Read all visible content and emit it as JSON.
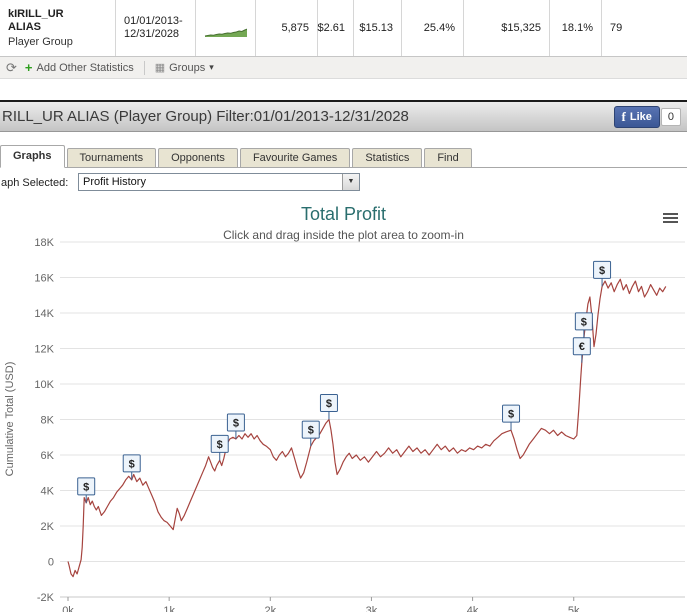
{
  "player_table": {
    "row": {
      "name": "kIRILL_UR ALIAS",
      "subtitle": "Player Group",
      "date_line1": "01/01/2013-",
      "date_line2": "12/31/2028",
      "stats": [
        "5,875",
        "$2.61",
        "$15.13",
        "25.4%",
        "$15,325",
        "18.1%",
        "79"
      ]
    },
    "sparkline": {
      "values": [
        0,
        0.5,
        1,
        0.8,
        1.5,
        2,
        1.8,
        2.5,
        3,
        2.7,
        3.5,
        4,
        5,
        4.5,
        6,
        7,
        9,
        11,
        14,
        15
      ],
      "fill": "#74a854",
      "stroke": "#477031"
    }
  },
  "toolbar": {
    "add_label": "Add Other Statistics",
    "groups_label": "Groups"
  },
  "header": {
    "title": "RILL_UR ALIAS (Player Group) Filter:01/01/2013-12/31/2028",
    "like_label": "Like",
    "like_count": "0"
  },
  "tabs": {
    "items": [
      {
        "label": "Graphs",
        "active": true
      },
      {
        "label": "Tournaments",
        "active": false
      },
      {
        "label": "Opponents",
        "active": false
      },
      {
        "label": "Favourite Games",
        "active": false
      },
      {
        "label": "Statistics",
        "active": false
      },
      {
        "label": "Find",
        "active": false
      }
    ]
  },
  "selector": {
    "label": "aph Selected:",
    "value": "Profit History"
  },
  "chart_data": {
    "type": "line",
    "title": "Total Profit",
    "subtitle": "Click and drag inside the plot area to zoom-in",
    "ylabel": "Cumulative Total (USD)",
    "xlabel": "",
    "xlim": [
      0,
      6.1
    ],
    "ylim": [
      -2000,
      18000
    ],
    "grid": true,
    "legend": "none",
    "line_color": "#a6443f",
    "flag_fill": "#edf4fb",
    "flag_border": "#3a6191",
    "x_ticks": [
      {
        "v": 0,
        "t": "0k"
      },
      {
        "v": 1,
        "t": "1k"
      },
      {
        "v": 2,
        "t": "2k"
      },
      {
        "v": 3,
        "t": "3k"
      },
      {
        "v": 4,
        "t": "4k"
      },
      {
        "v": 5,
        "t": "5k"
      }
    ],
    "y_ticks": [
      {
        "v": -2000,
        "t": "-2K"
      },
      {
        "v": 0,
        "t": "0"
      },
      {
        "v": 2000,
        "t": "2K"
      },
      {
        "v": 4000,
        "t": "4K"
      },
      {
        "v": 6000,
        "t": "6K"
      },
      {
        "v": 8000,
        "t": "8K"
      },
      {
        "v": 10000,
        "t": "10K"
      },
      {
        "v": 12000,
        "t": "12K"
      },
      {
        "v": 14000,
        "t": "14K"
      },
      {
        "v": 16000,
        "t": "16K"
      },
      {
        "v": 18000,
        "t": "18K"
      }
    ],
    "flags": [
      {
        "x": 0.18,
        "y": 3300,
        "label": "$"
      },
      {
        "x": 0.63,
        "y": 4600,
        "label": "$"
      },
      {
        "x": 1.5,
        "y": 5700,
        "label": "$"
      },
      {
        "x": 1.66,
        "y": 6900,
        "label": "$"
      },
      {
        "x": 2.4,
        "y": 6500,
        "label": "$"
      },
      {
        "x": 2.58,
        "y": 8000,
        "label": "$"
      },
      {
        "x": 4.38,
        "y": 7400,
        "label": "$"
      },
      {
        "x": 5.08,
        "y": 11200,
        "label": "€"
      },
      {
        "x": 5.1,
        "y": 12600,
        "label": "$"
      },
      {
        "x": 5.28,
        "y": 15500,
        "label": "$"
      }
    ],
    "series": [
      {
        "name": "Profit History",
        "points": [
          [
            0.0,
            0
          ],
          [
            0.01,
            -200
          ],
          [
            0.03,
            -700
          ],
          [
            0.05,
            -850
          ],
          [
            0.07,
            -500
          ],
          [
            0.09,
            -700
          ],
          [
            0.11,
            -300
          ],
          [
            0.13,
            100
          ],
          [
            0.14,
            800
          ],
          [
            0.15,
            2000
          ],
          [
            0.16,
            3600
          ],
          [
            0.18,
            3300
          ],
          [
            0.2,
            3600
          ],
          [
            0.22,
            3200
          ],
          [
            0.24,
            3400
          ],
          [
            0.26,
            3100
          ],
          [
            0.28,
            2900
          ],
          [
            0.3,
            3100
          ],
          [
            0.33,
            2600
          ],
          [
            0.36,
            2800
          ],
          [
            0.39,
            3100
          ],
          [
            0.42,
            3400
          ],
          [
            0.45,
            3600
          ],
          [
            0.48,
            3900
          ],
          [
            0.51,
            4100
          ],
          [
            0.54,
            4300
          ],
          [
            0.57,
            4600
          ],
          [
            0.6,
            4800
          ],
          [
            0.63,
            4600
          ],
          [
            0.65,
            4900
          ],
          [
            0.68,
            4500
          ],
          [
            0.71,
            4700
          ],
          [
            0.74,
            4300
          ],
          [
            0.77,
            4500
          ],
          [
            0.8,
            4100
          ],
          [
            0.83,
            3700
          ],
          [
            0.86,
            3300
          ],
          [
            0.89,
            2800
          ],
          [
            0.92,
            2500
          ],
          [
            0.95,
            2300
          ],
          [
            0.98,
            2200
          ],
          [
            1.01,
            2000
          ],
          [
            1.04,
            1800
          ],
          [
            1.06,
            2400
          ],
          [
            1.08,
            3000
          ],
          [
            1.1,
            2700
          ],
          [
            1.12,
            2300
          ],
          [
            1.15,
            2600
          ],
          [
            1.18,
            3000
          ],
          [
            1.21,
            3400
          ],
          [
            1.24,
            3800
          ],
          [
            1.27,
            4200
          ],
          [
            1.3,
            4600
          ],
          [
            1.33,
            5000
          ],
          [
            1.36,
            5400
          ],
          [
            1.39,
            5900
          ],
          [
            1.41,
            5600
          ],
          [
            1.43,
            5300
          ],
          [
            1.45,
            5100
          ],
          [
            1.47,
            5400
          ],
          [
            1.5,
            5700
          ],
          [
            1.52,
            5400
          ],
          [
            1.54,
            5800
          ],
          [
            1.56,
            6300
          ],
          [
            1.58,
            6700
          ],
          [
            1.6,
            6900
          ],
          [
            1.63,
            7000
          ],
          [
            1.66,
            6900
          ],
          [
            1.69,
            7100
          ],
          [
            1.72,
            6900
          ],
          [
            1.75,
            7200
          ],
          [
            1.78,
            7000
          ],
          [
            1.81,
            7200
          ],
          [
            1.84,
            6900
          ],
          [
            1.87,
            7100
          ],
          [
            1.9,
            6800
          ],
          [
            1.93,
            6600
          ],
          [
            1.96,
            6500
          ],
          [
            2.0,
            6300
          ],
          [
            2.03,
            5900
          ],
          [
            2.06,
            5700
          ],
          [
            2.09,
            6000
          ],
          [
            2.12,
            6200
          ],
          [
            2.15,
            5900
          ],
          [
            2.18,
            6100
          ],
          [
            2.21,
            6400
          ],
          [
            2.24,
            5800
          ],
          [
            2.27,
            5200
          ],
          [
            2.3,
            4700
          ],
          [
            2.33,
            5000
          ],
          [
            2.36,
            5600
          ],
          [
            2.4,
            6500
          ],
          [
            2.43,
            6800
          ],
          [
            2.46,
            7000
          ],
          [
            2.49,
            7200
          ],
          [
            2.52,
            7500
          ],
          [
            2.55,
            7800
          ],
          [
            2.58,
            8000
          ],
          [
            2.6,
            7400
          ],
          [
            2.62,
            6600
          ],
          [
            2.64,
            5600
          ],
          [
            2.66,
            4900
          ],
          [
            2.69,
            5200
          ],
          [
            2.72,
            5600
          ],
          [
            2.75,
            5900
          ],
          [
            2.78,
            6100
          ],
          [
            2.81,
            5800
          ],
          [
            2.85,
            6000
          ],
          [
            2.89,
            5700
          ],
          [
            2.93,
            5900
          ],
          [
            2.97,
            5600
          ],
          [
            3.01,
            5900
          ],
          [
            3.05,
            6200
          ],
          [
            3.09,
            5900
          ],
          [
            3.13,
            6100
          ],
          [
            3.17,
            6400
          ],
          [
            3.21,
            6100
          ],
          [
            3.25,
            6300
          ],
          [
            3.29,
            5900
          ],
          [
            3.33,
            6200
          ],
          [
            3.37,
            6500
          ],
          [
            3.41,
            6200
          ],
          [
            3.45,
            6400
          ],
          [
            3.49,
            6100
          ],
          [
            3.53,
            6300
          ],
          [
            3.57,
            6000
          ],
          [
            3.61,
            6300
          ],
          [
            3.65,
            6600
          ],
          [
            3.69,
            6300
          ],
          [
            3.73,
            6500
          ],
          [
            3.77,
            6200
          ],
          [
            3.81,
            6400
          ],
          [
            3.85,
            6100
          ],
          [
            3.89,
            6300
          ],
          [
            3.93,
            6200
          ],
          [
            3.97,
            6400
          ],
          [
            4.01,
            6300
          ],
          [
            4.05,
            6500
          ],
          [
            4.09,
            6400
          ],
          [
            4.13,
            6600
          ],
          [
            4.17,
            6500
          ],
          [
            4.21,
            6800
          ],
          [
            4.25,
            7000
          ],
          [
            4.29,
            7200
          ],
          [
            4.33,
            7300
          ],
          [
            4.38,
            7400
          ],
          [
            4.41,
            6900
          ],
          [
            4.44,
            6300
          ],
          [
            4.47,
            5800
          ],
          [
            4.5,
            6000
          ],
          [
            4.53,
            6300
          ],
          [
            4.56,
            6600
          ],
          [
            4.6,
            6900
          ],
          [
            4.64,
            7200
          ],
          [
            4.68,
            7500
          ],
          [
            4.72,
            7400
          ],
          [
            4.76,
            7200
          ],
          [
            4.8,
            7400
          ],
          [
            4.84,
            7100
          ],
          [
            4.88,
            7300
          ],
          [
            4.92,
            7100
          ],
          [
            4.96,
            7000
          ],
          [
            5.0,
            6900
          ],
          [
            5.03,
            7100
          ],
          [
            5.05,
            8600
          ],
          [
            5.07,
            10400
          ],
          [
            5.08,
            11200
          ],
          [
            5.1,
            12600
          ],
          [
            5.12,
            13600
          ],
          [
            5.14,
            14500
          ],
          [
            5.16,
            14900
          ],
          [
            5.18,
            13800
          ],
          [
            5.2,
            12100
          ],
          [
            5.22,
            12800
          ],
          [
            5.24,
            13900
          ],
          [
            5.26,
            14800
          ],
          [
            5.28,
            15500
          ],
          [
            5.31,
            15800
          ],
          [
            5.34,
            15400
          ],
          [
            5.37,
            15700
          ],
          [
            5.4,
            15200
          ],
          [
            5.43,
            15600
          ],
          [
            5.46,
            15900
          ],
          [
            5.49,
            15300
          ],
          [
            5.52,
            15600
          ],
          [
            5.55,
            15100
          ],
          [
            5.58,
            15500
          ],
          [
            5.61,
            15800
          ],
          [
            5.64,
            15200
          ],
          [
            5.67,
            15500
          ],
          [
            5.7,
            14900
          ],
          [
            5.73,
            15200
          ],
          [
            5.76,
            15600
          ],
          [
            5.79,
            15300
          ],
          [
            5.82,
            15000
          ],
          [
            5.85,
            15400
          ],
          [
            5.88,
            15200
          ],
          [
            5.91,
            15500
          ]
        ]
      }
    ]
  }
}
